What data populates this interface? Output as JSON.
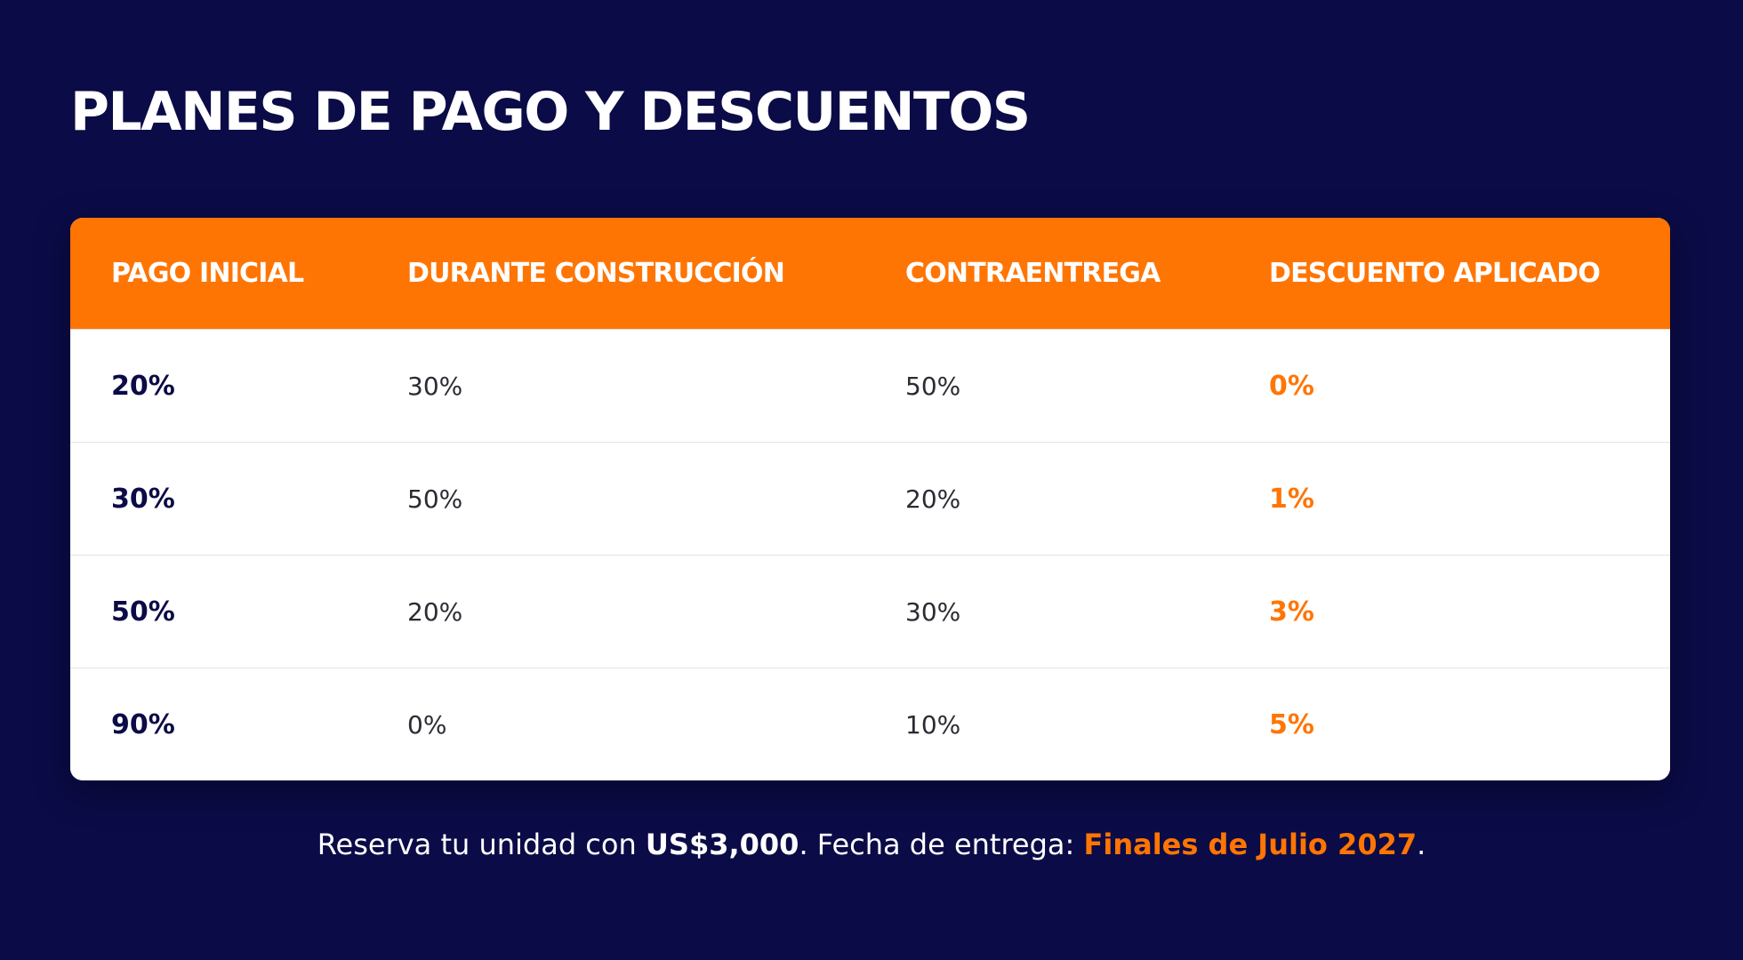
{
  "page": {
    "title": "PLANES DE PAGO Y DESCUENTOS"
  },
  "colors": {
    "background": "#0b0b47",
    "accent": "#ff7504",
    "card": "#ffffff",
    "text_dark": "#0b0b47"
  },
  "table": {
    "headers": [
      "PAGO INICIAL",
      "DURANTE CONSTRUCCIÓN",
      "CONTRAENTREGA",
      "DESCUENTO APLICADO"
    ],
    "rows": [
      {
        "initial": "20%",
        "construction": "30%",
        "delivery": "50%",
        "discount": "0%"
      },
      {
        "initial": "30%",
        "construction": "50%",
        "delivery": "20%",
        "discount": "1%"
      },
      {
        "initial": "50%",
        "construction": "20%",
        "delivery": "30%",
        "discount": "3%"
      },
      {
        "initial": "90%",
        "construction": "0%",
        "delivery": "10%",
        "discount": "5%"
      }
    ]
  },
  "footer": {
    "prefix": "Reserva tu unidad con ",
    "reservation_amount": "US$3,000",
    "middle": ". Fecha de entrega: ",
    "delivery_date": "Finales de Julio 2027",
    "suffix": "."
  }
}
